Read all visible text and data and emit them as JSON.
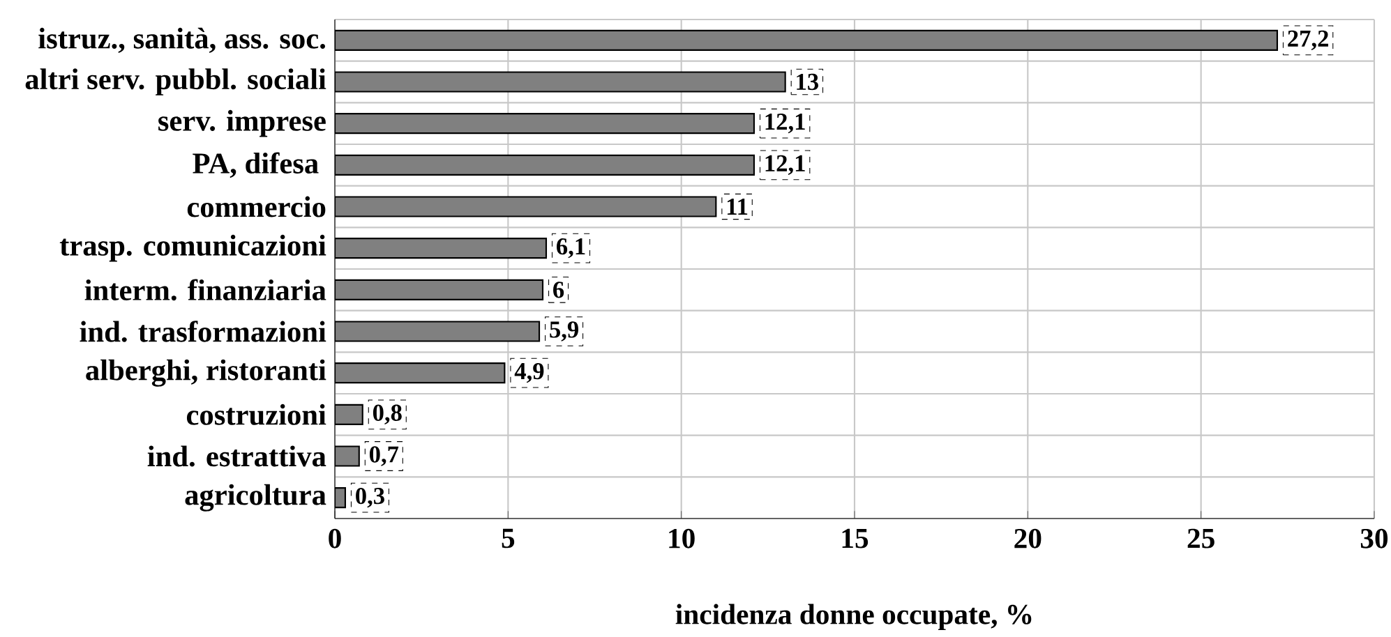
{
  "chart_data": {
    "type": "bar",
    "orientation": "horizontal",
    "categories": [
      "istruz., sanità, ass. soc.",
      "altri serv. pubbl. sociali",
      "serv. imprese",
      "PA, difesa ",
      "commercio",
      "trasp. comunicazioni",
      "interm. finanziaria",
      "ind. trasformazioni",
      "alberghi, ristoranti",
      "costruzioni",
      "ind. estrattiva",
      "agricoltura"
    ],
    "values": [
      27.2,
      13,
      12.1,
      12.1,
      11,
      6.1,
      6,
      5.9,
      4.9,
      0.8,
      0.7,
      0.3
    ],
    "value_labels": [
      "27,2",
      "13",
      "12,1",
      "12,1",
      "11",
      "6,1",
      "6",
      "5,9",
      "4,9",
      "0,8",
      "0,7",
      "0,3"
    ],
    "color": "#808080",
    "xlim": [
      0,
      30
    ],
    "xticks": [
      0,
      5,
      10,
      15,
      20,
      25,
      30
    ],
    "xlabel": "incidenza donne occupate, %",
    "grid": true
  }
}
